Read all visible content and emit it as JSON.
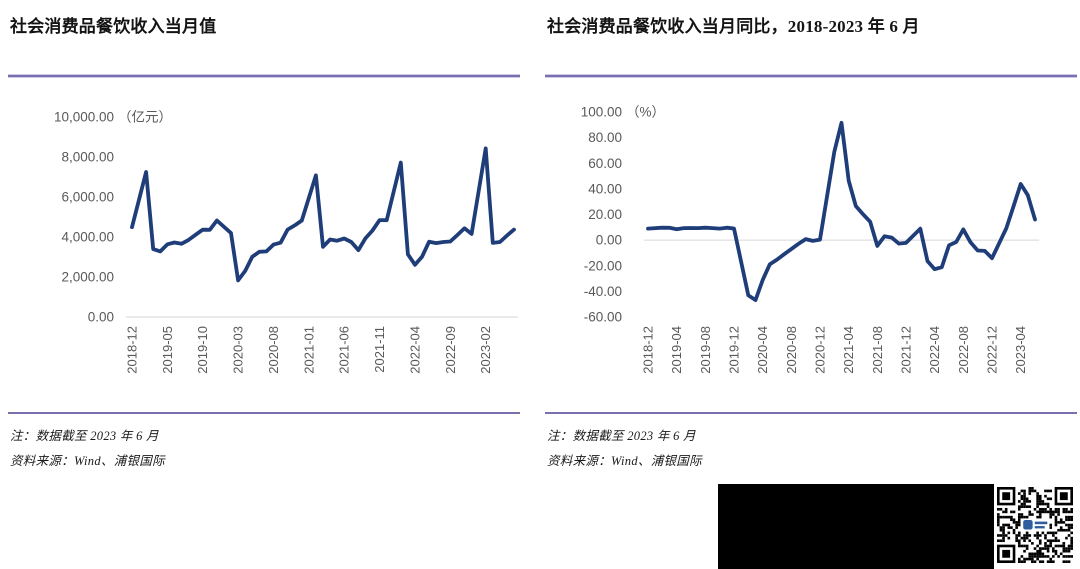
{
  "page": {
    "background": "#ffffff",
    "accent_rule_color": "#7c6fb0",
    "line_color": "#1f3d78",
    "axis_text_color": "#595959",
    "grid_color": "#d6d6d6",
    "qr_logo_color": "#2f5e9e"
  },
  "panels": [
    {
      "title": "社会消费品餐饮收入当月值",
      "note1": "注：数据截至 2023 年 6 月",
      "note2": "资料来源：Wind、浦银国际"
    },
    {
      "title": "社会消费品餐饮收入当月同比，2018-2023 年 6 月",
      "note1": "注：数据截至 2023 年 6 月",
      "note2": "资料来源：Wind、浦银国际"
    }
  ],
  "chart_data": [
    {
      "type": "line",
      "title": "社会消费品餐饮收入当月值",
      "unit": "（亿元）",
      "ylabel": "亿元",
      "ylim": [
        0,
        10000
      ],
      "y_ticks": [
        10000,
        8000,
        6000,
        4000,
        2000,
        0
      ],
      "y_tick_labels": [
        "10,000.00",
        "8,000.00",
        "6,000.00",
        "4,000.00",
        "2,000.00",
        "0.00"
      ],
      "x_tick_every": 5,
      "x_tick_labels": [
        "2018-12",
        "2019-05",
        "2019-10",
        "2020-03",
        "2020-08",
        "2021-01",
        "2021-06",
        "2021-11",
        "2022-04",
        "2022-09",
        "2023-02"
      ],
      "grid": "zero-axis-only",
      "legend": "none",
      "x": [
        "2018-12",
        "2019-01",
        "2019-02",
        "2019-03",
        "2019-04",
        "2019-05",
        "2019-06",
        "2019-07",
        "2019-08",
        "2019-09",
        "2019-10",
        "2019-11",
        "2019-12",
        "2020-01",
        "2020-02",
        "2020-03",
        "2020-04",
        "2020-05",
        "2020-06",
        "2020-07",
        "2020-08",
        "2020-09",
        "2020-10",
        "2020-11",
        "2020-12",
        "2021-01",
        "2021-02",
        "2021-03",
        "2021-04",
        "2021-05",
        "2021-06",
        "2021-07",
        "2021-08",
        "2021-09",
        "2021-10",
        "2021-11",
        "2021-12",
        "2022-01",
        "2022-02",
        "2022-03",
        "2022-04",
        "2022-05",
        "2022-06",
        "2022-07",
        "2022-08",
        "2022-09",
        "2022-10",
        "2022-11",
        "2022-12",
        "2023-01",
        "2023-02",
        "2023-03",
        "2023-04",
        "2023-05",
        "2023-06"
      ],
      "values": [
        4496,
        null,
        7251,
        3393,
        3281,
        3637,
        3723,
        3658,
        3857,
        4117,
        4367,
        4361,
        4825,
        null,
        4194,
        1832,
        2307,
        3013,
        3262,
        3282,
        3619,
        3715,
        4372,
        4578,
        4827,
        null,
        7085,
        3511,
        3877,
        3816,
        3923,
        3751,
        3344,
        3930,
        4326,
        4843,
        4841,
        null,
        7718,
        3135,
        2609,
        3012,
        3766,
        3694,
        3748,
        3777,
        4099,
        4435,
        4157,
        null,
        8429,
        3707,
        3751,
        4070,
        4371
      ]
    },
    {
      "type": "line",
      "title": "社会消费品餐饮收入当月同比，2018-2023 年 6 月",
      "unit": "（%）",
      "ylabel": "%",
      "ylim": [
        -60,
        100
      ],
      "y_ticks": [
        100,
        80,
        60,
        40,
        20,
        0,
        -20,
        -40,
        -60
      ],
      "y_tick_labels": [
        "100.00",
        "80.00",
        "60.00",
        "40.00",
        "20.00",
        "0.00",
        "-20.00",
        "-40.00",
        "-60.00"
      ],
      "x_tick_every": 4,
      "x_tick_labels": [
        "2018-12",
        "2019-04",
        "2019-08",
        "2019-12",
        "2020-04",
        "2020-08",
        "2020-12",
        "2021-04",
        "2021-08",
        "2021-12",
        "2022-04",
        "2022-08",
        "2022-12",
        "2023-04"
      ],
      "grid": "zero-axis-only",
      "legend": "none",
      "x": [
        "2018-12",
        "2019-01",
        "2019-02",
        "2019-03",
        "2019-04",
        "2019-05",
        "2019-06",
        "2019-07",
        "2019-08",
        "2019-09",
        "2019-10",
        "2019-11",
        "2019-12",
        "2020-01",
        "2020-02",
        "2020-03",
        "2020-04",
        "2020-05",
        "2020-06",
        "2020-07",
        "2020-08",
        "2020-09",
        "2020-10",
        "2020-11",
        "2020-12",
        "2021-01",
        "2021-02",
        "2021-03",
        "2021-04",
        "2021-05",
        "2021-06",
        "2021-07",
        "2021-08",
        "2021-09",
        "2021-10",
        "2021-11",
        "2021-12",
        "2022-01",
        "2022-02",
        "2022-03",
        "2022-04",
        "2022-05",
        "2022-06",
        "2022-07",
        "2022-08",
        "2022-09",
        "2022-10",
        "2022-11",
        "2022-12",
        "2023-01",
        "2023-02",
        "2023-03",
        "2023-04",
        "2023-05",
        "2023-06"
      ],
      "values": [
        9.0,
        null,
        9.7,
        9.6,
        8.5,
        9.4,
        9.5,
        9.4,
        9.7,
        9.4,
        9.0,
        9.7,
        9.1,
        null,
        -43.1,
        -46.8,
        -31.1,
        -18.9,
        -15.2,
        -11.0,
        -7.0,
        -2.9,
        0.8,
        -0.6,
        0.4,
        null,
        68.9,
        91.6,
        46.4,
        26.6,
        20.2,
        14.3,
        -4.5,
        3.1,
        2.0,
        -2.7,
        -2.2,
        null,
        8.9,
        -16.4,
        -22.7,
        -21.1,
        -4.0,
        -1.5,
        8.4,
        -1.7,
        -8.1,
        -8.4,
        -14.1,
        null,
        9.2,
        26.3,
        43.8,
        35.1,
        16.1
      ]
    }
  ]
}
